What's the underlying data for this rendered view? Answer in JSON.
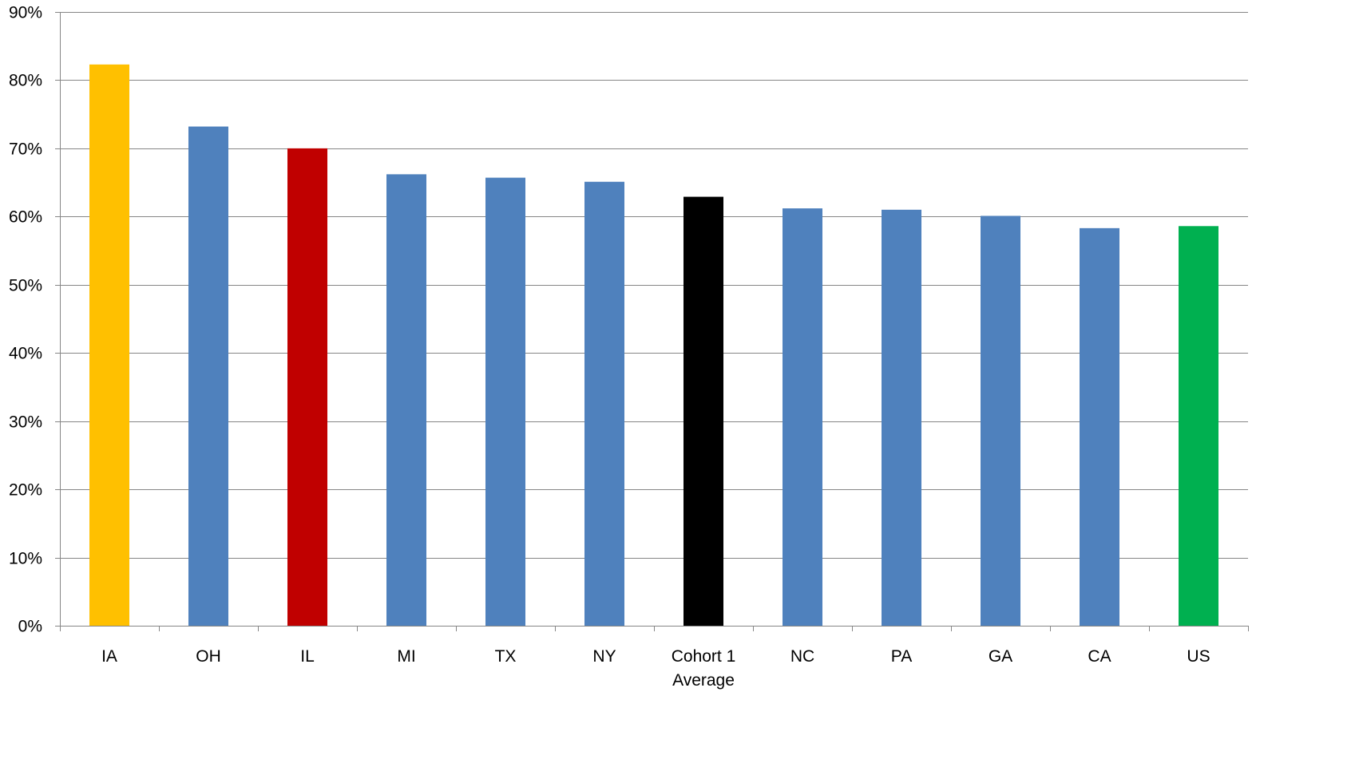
{
  "chart_data": {
    "type": "bar",
    "title": "",
    "xlabel": "",
    "ylabel": "",
    "categories": [
      [
        "IA"
      ],
      [
        "OH"
      ],
      [
        "IL"
      ],
      [
        "MI"
      ],
      [
        "TX"
      ],
      [
        "NY"
      ],
      [
        "Cohort 1",
        "Average"
      ],
      [
        "NC"
      ],
      [
        "PA"
      ],
      [
        "GA"
      ],
      [
        "CA"
      ],
      [
        "US"
      ]
    ],
    "values": [
      82.3,
      73.2,
      70.0,
      66.2,
      65.7,
      65.1,
      62.9,
      61.2,
      61.0,
      60.1,
      58.3,
      58.6
    ],
    "colors": [
      "#FFC000",
      "#4F81BD",
      "#C00000",
      "#4F81BD",
      "#4F81BD",
      "#4F81BD",
      "#000000",
      "#4F81BD",
      "#4F81BD",
      "#4F81BD",
      "#4F81BD",
      "#00B050"
    ],
    "ylim": [
      0,
      90
    ],
    "yticks": [
      0,
      10,
      20,
      30,
      40,
      50,
      60,
      70,
      80,
      90
    ],
    "ytick_suffix": "%",
    "grid": true,
    "gridline_color": "#868686",
    "axis_color": "#868686",
    "legend": "none"
  }
}
